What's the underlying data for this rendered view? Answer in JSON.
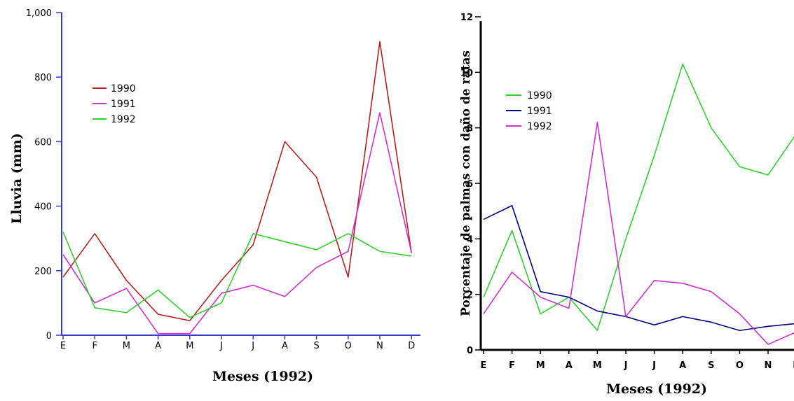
{
  "chart_data": [
    {
      "type": "line",
      "title": "",
      "xlabel": "Meses (1992)",
      "ylabel": "Lluvia (mm)",
      "categories": [
        "E",
        "F",
        "M",
        "A",
        "M",
        "J",
        "J",
        "A",
        "S",
        "O",
        "N",
        "D"
      ],
      "yticks": [
        "0",
        "200",
        "400",
        "600",
        "800",
        "1,000"
      ],
      "ylim": [
        0,
        1000
      ],
      "grid": false,
      "legend": "top-left",
      "series": [
        {
          "name": "1990",
          "color": "#b22222",
          "values": [
            180,
            315,
            170,
            65,
            45,
            170,
            280,
            600,
            490,
            180,
            910,
            255
          ]
        },
        {
          "name": "1991",
          "color": "#cc33cc",
          "values": [
            250,
            100,
            145,
            5,
            5,
            130,
            155,
            120,
            210,
            260,
            690,
            255
          ]
        },
        {
          "name": "1992",
          "color": "#33cc33",
          "values": [
            320,
            85,
            70,
            140,
            55,
            100,
            315,
            290,
            265,
            315,
            260,
            245
          ]
        }
      ]
    },
    {
      "type": "line",
      "title": "",
      "xlabel": "Meses (1992)",
      "ylabel": "Porcentaje de palmas con daño de ratas",
      "categories": [
        "E",
        "F",
        "M",
        "A",
        "M",
        "J",
        "J",
        "A",
        "S",
        "O",
        "N",
        "D"
      ],
      "yticks": [
        "0",
        "2",
        "4",
        "6",
        "8",
        "10",
        "12"
      ],
      "ylim": [
        0,
        12
      ],
      "grid": false,
      "legend": "top-left",
      "series": [
        {
          "name": "1990",
          "color": "#33cc33",
          "values": [
            1.9,
            4.3,
            1.3,
            1.9,
            0.7,
            4.0,
            7.0,
            10.3,
            8.0,
            6.6,
            6.3,
            7.8
          ]
        },
        {
          "name": "1991",
          "color": "#000080",
          "values": [
            4.7,
            5.2,
            2.1,
            1.9,
            1.4,
            1.2,
            0.9,
            1.2,
            1.0,
            0.7,
            0.85,
            0.95
          ]
        },
        {
          "name": "1992",
          "color": "#cc33cc",
          "values": [
            1.3,
            2.8,
            1.9,
            1.5,
            8.2,
            1.2,
            2.5,
            2.4,
            2.1,
            1.3,
            0.2,
            0.65
          ]
        }
      ]
    }
  ]
}
